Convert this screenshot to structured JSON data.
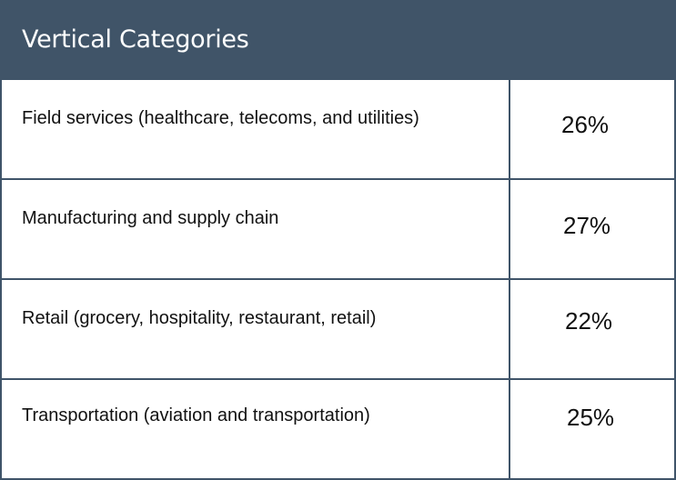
{
  "table": {
    "title": "Vertical Categories",
    "rows": [
      {
        "label": "Field services  (healthcare, telecoms, and utilities)",
        "value": "26%"
      },
      {
        "label": "Manufacturing and supply chain",
        "value": "27%"
      },
      {
        "label": "Retail (grocery, hospitality, restaurant, retail)",
        "value": "22%"
      },
      {
        "label": "Transportation (aviation and transportation)",
        "value": "25%"
      }
    ]
  },
  "colors": {
    "header_bg": "#405468",
    "border": "#3f5469",
    "header_text": "#ffffff",
    "body_text": "#111111"
  }
}
